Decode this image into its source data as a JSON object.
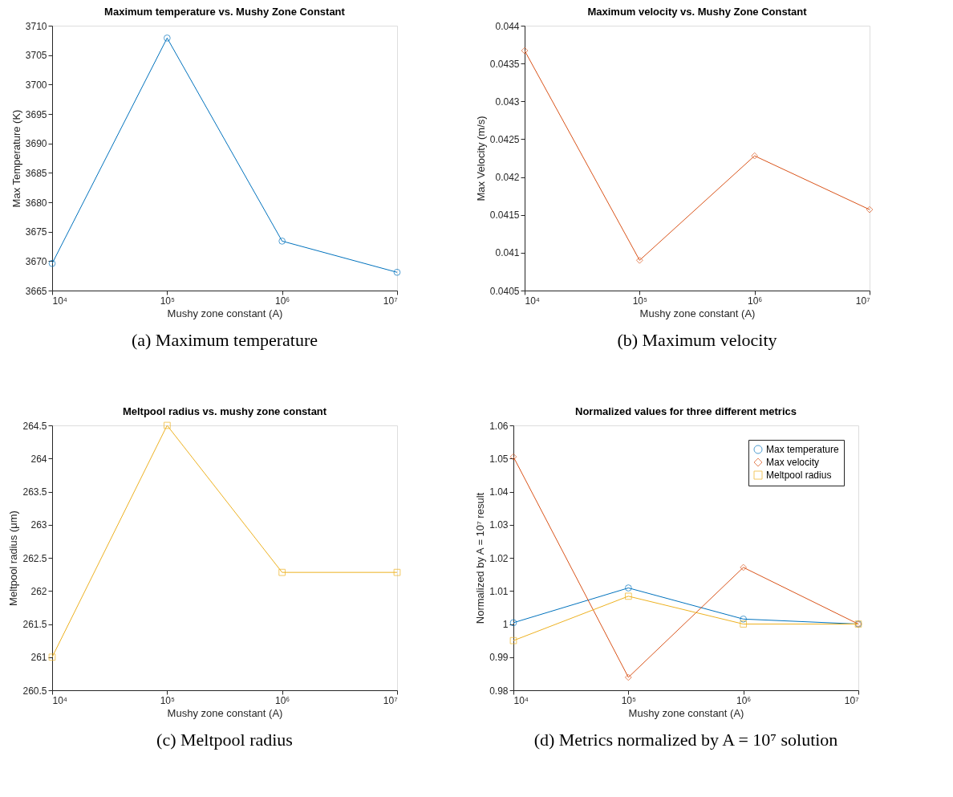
{
  "chart_data": [
    {
      "type": "line",
      "title": "Maximum temperature vs. Mushy Zone Constant",
      "xlabel": "Mushy zone constant (A)",
      "ylabel": "Max Temperature (K)",
      "x": [
        10000,
        100000,
        1000000,
        10000000
      ],
      "series": [
        {
          "color": "#0072bd",
          "values": [
            3669.6,
            3707.9,
            3673.4,
            3668.1
          ],
          "marker": "circle"
        }
      ],
      "xlim": [
        10000,
        10000000
      ],
      "xticks": [
        {
          "value": 10000,
          "label": "10⁴"
        },
        {
          "value": 100000,
          "label": "10⁵"
        },
        {
          "value": 1000000,
          "label": "10⁶"
        },
        {
          "value": 10000000,
          "label": "10⁷"
        }
      ],
      "ylim": [
        3665,
        3710
      ],
      "yticks": [
        3665,
        3670,
        3675,
        3680,
        3685,
        3690,
        3695,
        3700,
        3705,
        3710
      ],
      "log": "x",
      "grid": false,
      "legend": false,
      "annotations": [
        "(a) Maximum temperature"
      ]
    },
    {
      "type": "line",
      "title": "Maximum velocity vs. Mushy Zone Constant",
      "xlabel": "Mushy zone constant (A)",
      "ylabel": "Max Velocity (m/s)",
      "x": [
        10000,
        100000,
        1000000,
        10000000
      ],
      "series": [
        {
          "color": "#d95319",
          "values": [
            0.04367,
            0.0409,
            0.04228,
            0.04157
          ],
          "marker": "diamond"
        }
      ],
      "xlim": [
        10000,
        10000000
      ],
      "xticks": [
        {
          "value": 10000,
          "label": "10⁴"
        },
        {
          "value": 100000,
          "label": "10⁵"
        },
        {
          "value": 1000000,
          "label": "10⁶"
        },
        {
          "value": 10000000,
          "label": "10⁷"
        }
      ],
      "ylim": [
        0.0405,
        0.044
      ],
      "yticks": [
        0.0405,
        0.041,
        0.0415,
        0.042,
        0.0425,
        0.043,
        0.0435,
        0.044
      ],
      "log": "x",
      "grid": false,
      "legend": false,
      "annotations": [
        "(b) Maximum velocity"
      ]
    },
    {
      "type": "line",
      "title": "Meltpool radius vs. mushy zone constant",
      "xlabel": "Mushy zone constant (A)",
      "ylabel": "Meltpool radius (μm)",
      "x": [
        10000,
        100000,
        1000000,
        10000000
      ],
      "series": [
        {
          "color": "#edb120",
          "values": [
            261.0,
            264.5,
            262.28,
            262.28
          ],
          "marker": "square"
        }
      ],
      "xlim": [
        10000,
        10000000
      ],
      "xticks": [
        {
          "value": 10000,
          "label": "10⁴"
        },
        {
          "value": 100000,
          "label": "10⁵"
        },
        {
          "value": 1000000,
          "label": "10⁶"
        },
        {
          "value": 10000000,
          "label": "10⁷"
        }
      ],
      "ylim": [
        260.5,
        264.5
      ],
      "yticks": [
        260.5,
        261,
        261.5,
        262,
        262.5,
        263,
        263.5,
        264,
        264.5
      ],
      "log": "x",
      "grid": false,
      "legend": false,
      "annotations": [
        "(c) Meltpool radius"
      ]
    },
    {
      "type": "line",
      "title": "Normalized values for three different metrics",
      "xlabel": "Mushy zone constant (A)",
      "ylabel": "Normalized by A = 10⁷ result",
      "x": [
        10000,
        100000,
        1000000,
        10000000
      ],
      "series": [
        {
          "name": "Max temperature",
          "color": "#0072bd",
          "values": [
            1.0004,
            1.0109,
            1.0015,
            1.0
          ],
          "marker": "circle"
        },
        {
          "name": "Max velocity",
          "color": "#d95319",
          "values": [
            1.0505,
            0.9839,
            1.0171,
            1.0
          ],
          "marker": "diamond"
        },
        {
          "name": "Meltpool radius",
          "color": "#edb120",
          "values": [
            0.995,
            1.0084,
            1.0,
            1.0
          ],
          "marker": "square"
        }
      ],
      "xlim": [
        10000,
        10000000
      ],
      "xticks": [
        {
          "value": 10000,
          "label": "10⁴"
        },
        {
          "value": 100000,
          "label": "10⁵"
        },
        {
          "value": 1000000,
          "label": "10⁶"
        },
        {
          "value": 10000000,
          "label": "10⁷"
        }
      ],
      "ylim": [
        0.98,
        1.06
      ],
      "yticks": [
        0.98,
        0.99,
        1,
        1.01,
        1.02,
        1.03,
        1.04,
        1.05,
        1.06
      ],
      "log": "x",
      "grid": false,
      "legend": "top right",
      "annotations": [
        "(d) Metrics normalized by A = 10⁷ solution"
      ]
    }
  ]
}
